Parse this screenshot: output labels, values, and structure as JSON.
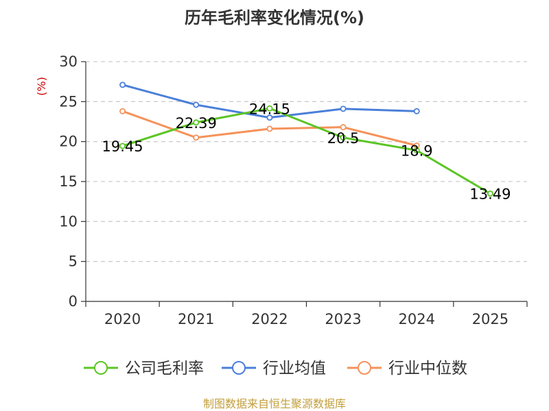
{
  "chart_data": {
    "type": "line",
    "title": "历年毛利率变化情况(%)",
    "ylabel": "(%)",
    "xlabel": "",
    "categories": [
      "2020",
      "2021",
      "2022",
      "2023",
      "2024",
      "2025"
    ],
    "ylim": [
      0,
      30
    ],
    "yticks": [
      0,
      5,
      10,
      15,
      20,
      25,
      30
    ],
    "grid": true,
    "legend_position": "bottom",
    "series": [
      {
        "name": "公司毛利率",
        "color": "#5bc524",
        "values": [
          19.45,
          22.39,
          24.15,
          20.5,
          18.9,
          13.49
        ],
        "labels": [
          "19.45",
          "22.39",
          "24.15",
          "20.5",
          "18.9",
          "13.49"
        ]
      },
      {
        "name": "行业均值",
        "color": "#4a7fd9",
        "values": [
          27.1,
          24.6,
          23.0,
          24.1,
          23.8,
          null
        ]
      },
      {
        "name": "行业中位数",
        "color": "#f5925a",
        "values": [
          23.8,
          20.5,
          21.6,
          21.8,
          19.5,
          null
        ]
      }
    ],
    "source": "制图数据来自恒生聚源数据库"
  }
}
